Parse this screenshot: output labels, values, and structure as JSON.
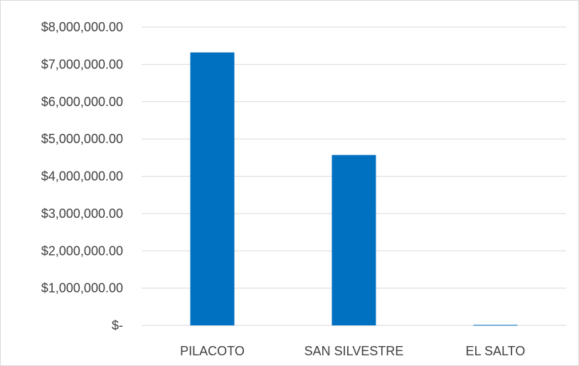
{
  "chart_data": {
    "type": "bar",
    "title": "",
    "xlabel": "",
    "ylabel": "",
    "categories": [
      "PILACOTO",
      "SAN SILVESTRE",
      "EL SALTO"
    ],
    "values": [
      7320000,
      4570000,
      15000
    ],
    "ylim": [
      0,
      8000000
    ],
    "yticks": [
      0,
      1000000,
      2000000,
      3000000,
      4000000,
      5000000,
      6000000,
      7000000,
      8000000
    ],
    "ytick_labels": [
      "$-",
      "$1,000,000.00",
      "$2,000,000.00",
      "$3,000,000.00",
      "$4,000,000.00",
      "$5,000,000.00",
      "$6,000,000.00",
      "$7,000,000.00",
      "$8,000,000.00"
    ],
    "grid": true,
    "legend": "none",
    "colors": {
      "bar": "#0070C0",
      "grid": "#d9d9d9",
      "text": "#404040"
    }
  }
}
